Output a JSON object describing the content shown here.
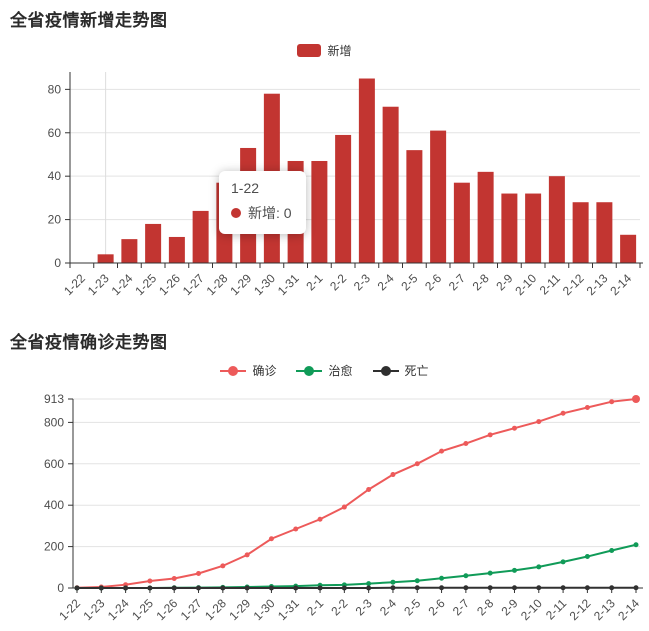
{
  "page": {
    "background": "#ffffff"
  },
  "colors": {
    "axis_line": "#333333",
    "gridline": "#e3e3e3",
    "pointer_line": "#dddddd",
    "tick_label": "#4d4d4d",
    "title_text": "#2b2b2b",
    "tooltip_text": "#4d4d4d"
  },
  "chart_data": [
    {
      "type": "bar",
      "title": "全省疫情新增走势图",
      "categories": [
        "1-22",
        "1-23",
        "1-24",
        "1-25",
        "1-26",
        "1-27",
        "1-28",
        "1-29",
        "1-30",
        "1-31",
        "2-1",
        "2-2",
        "2-3",
        "2-4",
        "2-5",
        "2-6",
        "2-7",
        "2-8",
        "2-9",
        "2-10",
        "2-11",
        "2-12",
        "2-13",
        "2-14"
      ],
      "series": [
        {
          "name": "新增",
          "color": "#c23531",
          "values": [
            0,
            4,
            11,
            18,
            12,
            24,
            37,
            53,
            78,
            47,
            47,
            59,
            85,
            72,
            52,
            61,
            37,
            42,
            32,
            32,
            40,
            28,
            28,
            13
          ]
        }
      ],
      "xlabel": "",
      "ylabel": "",
      "yticks": [
        0,
        20,
        40,
        60,
        80
      ],
      "ylim": [
        0,
        88
      ],
      "grid": true,
      "legend_position": "top-center",
      "axis_pointer_index": 1,
      "tooltip": {
        "category": "1-22",
        "series": "新增",
        "value": 0,
        "text": "新增: 0",
        "dot_color": "#c23531"
      }
    },
    {
      "type": "line",
      "title": "全省疫情确诊走势图",
      "categories": [
        "1-22",
        "1-23",
        "1-24",
        "1-25",
        "1-26",
        "1-27",
        "1-28",
        "1-29",
        "1-30",
        "1-31",
        "2-1",
        "2-2",
        "2-3",
        "2-4",
        "2-5",
        "2-6",
        "2-7",
        "2-8",
        "2-9",
        "2-10",
        "2-11",
        "2-12",
        "2-13",
        "2-14"
      ],
      "series": [
        {
          "name": "确诊",
          "color": "#ed5a5a",
          "values": [
            1,
            5,
            16,
            34,
            46,
            70,
            107,
            160,
            238,
            285,
            332,
            391,
            476,
            548,
            600,
            661,
            698,
            740,
            772,
            804,
            844,
            872,
            900,
            913
          ]
        },
        {
          "name": "治愈",
          "color": "#109b58",
          "values": [
            0,
            0,
            0,
            0,
            1,
            2,
            3,
            5,
            7,
            9,
            13,
            15,
            21,
            28,
            35,
            47,
            59,
            72,
            85,
            102,
            126,
            152,
            181,
            209
          ]
        },
        {
          "name": "死亡",
          "color": "#2f2f2f",
          "values": [
            0,
            0,
            0,
            0,
            0,
            0,
            0,
            0,
            0,
            0,
            0,
            0,
            0,
            1,
            1,
            1,
            1,
            1,
            1,
            1,
            1,
            1,
            1,
            1
          ]
        }
      ],
      "xlabel": "",
      "ylabel": "",
      "yticks": [
        0,
        200,
        400,
        600,
        800,
        913
      ],
      "ylim": [
        0,
        913
      ],
      "grid": true,
      "legend_position": "top-center"
    }
  ]
}
